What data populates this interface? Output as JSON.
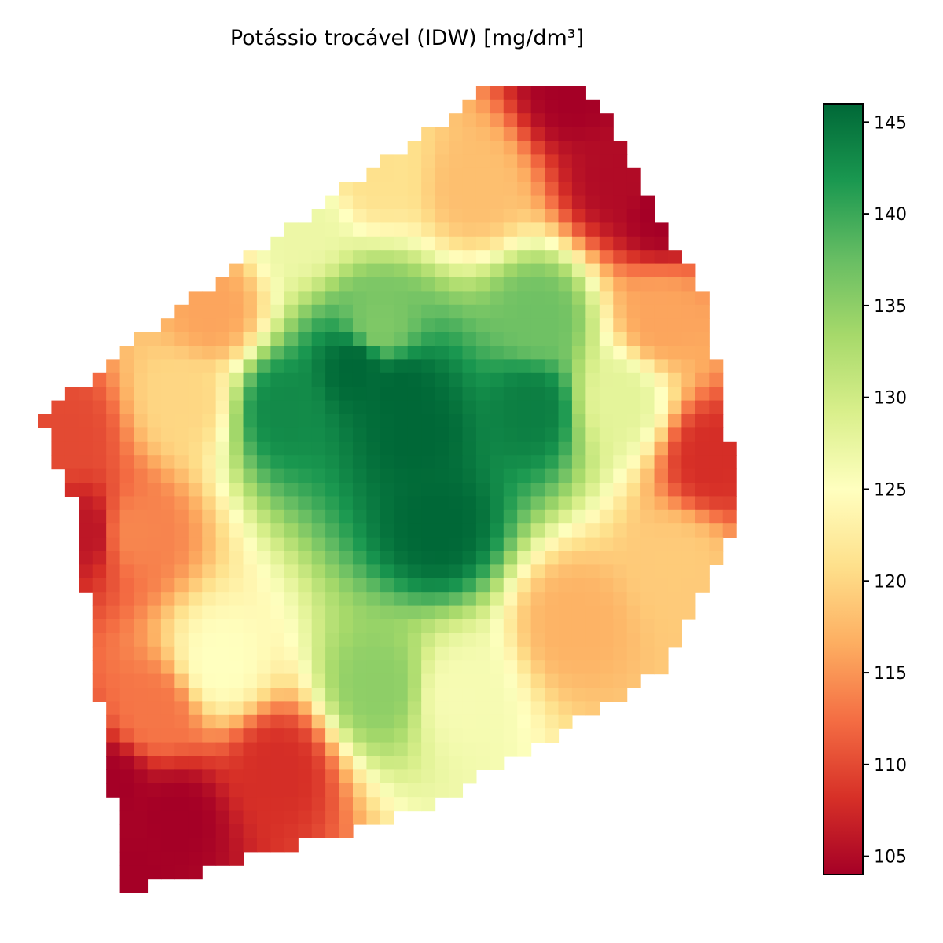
{
  "chart_data": {
    "type": "heatmap",
    "title": "Potássio trocável (IDW) [mg/dm³]",
    "xlabel": "",
    "ylabel": "",
    "axes_visible": false,
    "grid": false,
    "colormap": "RdYlGn",
    "value_range": [
      104,
      146
    ],
    "colorbar": {
      "placement": "right",
      "ticks": [
        105,
        110,
        115,
        120,
        125,
        130,
        135,
        140,
        145
      ],
      "tick_labels": [
        "105",
        "110",
        "115",
        "120",
        "125",
        "130",
        "135",
        "140",
        "145"
      ]
    },
    "colormap_stops": [
      {
        "value": 104,
        "color": "#a50026"
      },
      {
        "value": 108.2,
        "color": "#d73027"
      },
      {
        "value": 112.4,
        "color": "#f46d43"
      },
      {
        "value": 116.6,
        "color": "#fdae61"
      },
      {
        "value": 120.8,
        "color": "#fee08b"
      },
      {
        "value": 125,
        "color": "#ffffbf"
      },
      {
        "value": 129.2,
        "color": "#d9ef8b"
      },
      {
        "value": 133.4,
        "color": "#a6d96a"
      },
      {
        "value": 137.6,
        "color": "#66bd63"
      },
      {
        "value": 141.8,
        "color": "#1a9850"
      },
      {
        "value": 146,
        "color": "#006837"
      }
    ],
    "field_extent_note": "IDW interpolated raster over an irregular field polygon",
    "polygon_vertices": [
      [
        0.62,
        0.02
      ],
      [
        0.76,
        0.02
      ],
      [
        0.92,
        0.28
      ],
      [
        0.97,
        0.53
      ],
      [
        0.86,
        0.73
      ],
      [
        0.53,
        0.9
      ],
      [
        0.12,
        1.0
      ],
      [
        0.05,
        0.53
      ],
      [
        0.0,
        0.42
      ],
      [
        0.28,
        0.23
      ]
    ],
    "idw_points": [
      {
        "x": 0.44,
        "y": 0.36,
        "value": 146
      },
      {
        "x": 0.5,
        "y": 0.39,
        "value": 146
      },
      {
        "x": 0.52,
        "y": 0.44,
        "value": 146
      },
      {
        "x": 0.55,
        "y": 0.55,
        "value": 146
      },
      {
        "x": 0.68,
        "y": 0.41,
        "value": 144
      },
      {
        "x": 0.34,
        "y": 0.41,
        "value": 143
      },
      {
        "x": 0.69,
        "y": 0.3,
        "value": 137
      },
      {
        "x": 0.47,
        "y": 0.75,
        "value": 135
      },
      {
        "x": 0.47,
        "y": 0.31,
        "value": 136
      },
      {
        "x": 0.8,
        "y": 0.4,
        "value": 128
      },
      {
        "x": 0.36,
        "y": 0.19,
        "value": 127
      },
      {
        "x": 0.25,
        "y": 0.72,
        "value": 125
      },
      {
        "x": 0.58,
        "y": 0.76,
        "value": 126
      },
      {
        "x": 0.6,
        "y": 0.14,
        "value": 118
      },
      {
        "x": 0.47,
        "y": 0.12,
        "value": 121
      },
      {
        "x": 0.2,
        "y": 0.4,
        "value": 120
      },
      {
        "x": 0.88,
        "y": 0.6,
        "value": 119
      },
      {
        "x": 0.13,
        "y": 0.56,
        "value": 114
      },
      {
        "x": 0.24,
        "y": 0.29,
        "value": 116
      },
      {
        "x": 0.16,
        "y": 0.78,
        "value": 113
      },
      {
        "x": 0.86,
        "y": 0.3,
        "value": 116
      },
      {
        "x": 0.74,
        "y": 0.67,
        "value": 117
      },
      {
        "x": 0.04,
        "y": 0.44,
        "value": 110
      },
      {
        "x": 0.07,
        "y": 0.56,
        "value": 106
      },
      {
        "x": 0.8,
        "y": 0.13,
        "value": 105
      },
      {
        "x": 0.74,
        "y": 0.02,
        "value": 104
      },
      {
        "x": 0.86,
        "y": 0.17,
        "value": 104
      },
      {
        "x": 0.93,
        "y": 0.47,
        "value": 108
      },
      {
        "x": 0.33,
        "y": 0.85,
        "value": 108
      },
      {
        "x": 0.19,
        "y": 0.91,
        "value": 104
      },
      {
        "x": 0.13,
        "y": 0.99,
        "value": 104
      },
      {
        "x": 0.1,
        "y": 0.87,
        "value": 104
      }
    ]
  }
}
